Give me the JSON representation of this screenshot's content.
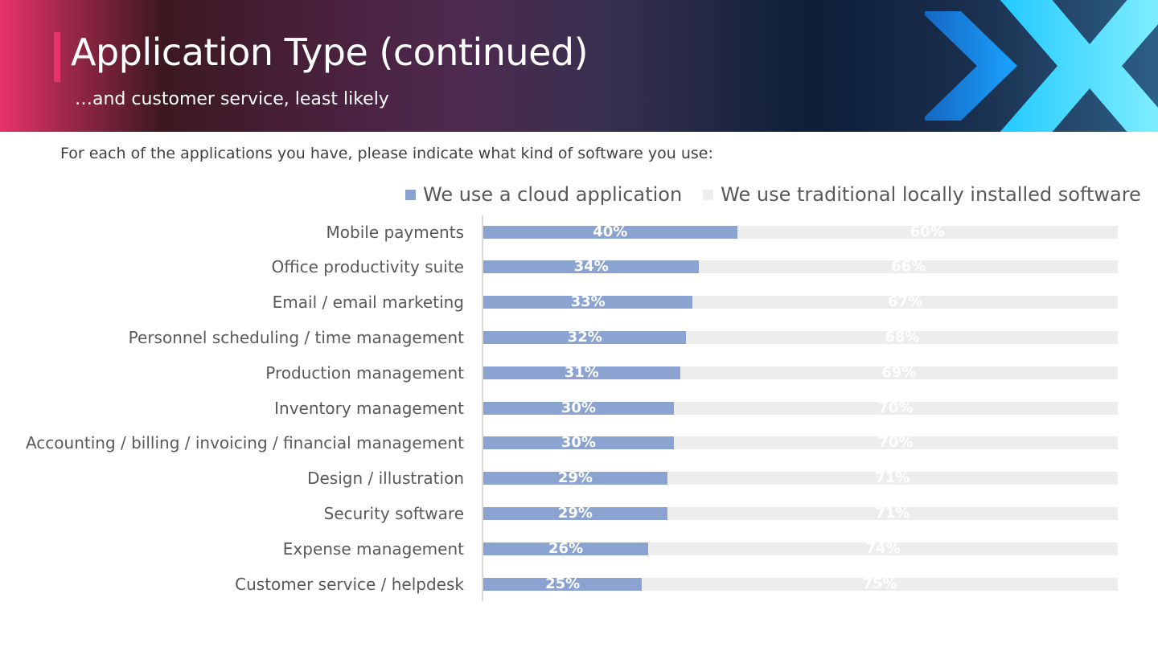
{
  "header": {
    "title": "Application Type (continued)",
    "subtitle": "…and customer service, least likely",
    "accent_color": "#e8326a",
    "logo_icon": "chevron-x-logo-icon"
  },
  "question": "For each of the applications you have, please indicate what kind of software you use:",
  "chart_data": {
    "type": "bar",
    "orientation": "horizontal",
    "stacked": true,
    "categories": [
      "Mobile payments",
      "Office productivity suite",
      "Email / email marketing",
      "Personnel scheduling / time management",
      "Production management",
      "Inventory management",
      "Accounting / billing / invoicing / financial management",
      "Design / illustration",
      "Security software",
      "Expense management",
      "Customer service / helpdesk"
    ],
    "series": [
      {
        "name": "We use a cloud application",
        "color": "#8aa3d1",
        "values": [
          40,
          34,
          33,
          32,
          31,
          30,
          30,
          29,
          29,
          26,
          25
        ],
        "labels": [
          "40%",
          "34%",
          "33%",
          "32%",
          "31%",
          "30%",
          "30%",
          "29%",
          "29%",
          "26%",
          "25%"
        ]
      },
      {
        "name": "We use traditional locally installed software",
        "color": "#ededed",
        "values": [
          60,
          66,
          67,
          68,
          69,
          70,
          70,
          71,
          71,
          74,
          75
        ],
        "labels": [
          "60%",
          "66%",
          "67%",
          "68%",
          "69%",
          "70%",
          "70%",
          "71%",
          "71%",
          "74%",
          "75%"
        ]
      }
    ],
    "xlim": [
      0,
      100
    ],
    "legend_position": "top-right",
    "grid": false
  }
}
